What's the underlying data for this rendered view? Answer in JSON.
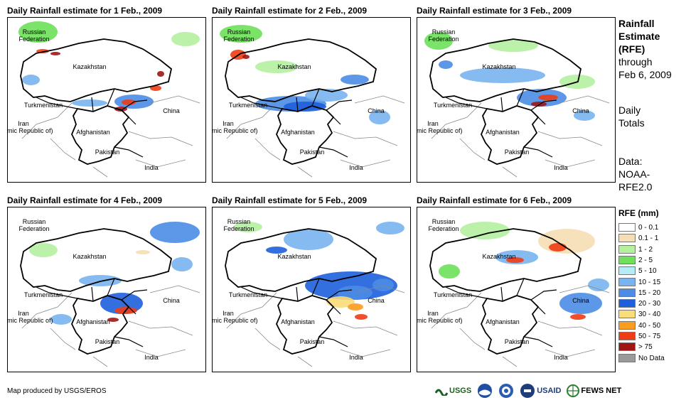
{
  "panels": [
    {
      "title": "Daily Rainfall estimate for 1 Feb., 2009"
    },
    {
      "title": "Daily Rainfall estimate for 2 Feb., 2009"
    },
    {
      "title": "Daily Rainfall estimate for 3 Feb., 2009"
    },
    {
      "title": "Daily Rainfall estimate for 4 Feb., 2009"
    },
    {
      "title": "Daily Rainfall estimate for 5 Feb., 2009"
    },
    {
      "title": "Daily Rainfall estimate for 6 Feb., 2009"
    }
  ],
  "labels": {
    "russia_1": "Russian",
    "russia_2": "Federation",
    "kazakhstan": "Kazakhstan",
    "turkmenistan": "Turkmenistan",
    "iran_1": "Iran",
    "iran_2": "(Islamic Republic of)",
    "afghanistan": "Afghanistan",
    "pakistan": "Pakistan",
    "china": "China",
    "india": "India"
  },
  "side": {
    "t1": "Rainfall",
    "t2": "Estimate",
    "t3": "(RFE)",
    "t4": "through",
    "t5": "Feb 6, 2009",
    "t6": "Daily",
    "t7": "Totals",
    "t8": "Data:",
    "t9": "NOAA-",
    "t10": "RFE2.0"
  },
  "legend": {
    "title": "RFE (mm)",
    "items": [
      {
        "label": "0 - 0.1",
        "color": "#ffffff"
      },
      {
        "label": "0.1 - 1",
        "color": "#f5deb3"
      },
      {
        "label": "1 - 2",
        "color": "#b4f0a0"
      },
      {
        "label": "2 - 5",
        "color": "#6ee05a"
      },
      {
        "label": "5 - 10",
        "color": "#b4ecf8"
      },
      {
        "label": "10 - 15",
        "color": "#78b4f0"
      },
      {
        "label": "15 - 20",
        "color": "#4a8ce6"
      },
      {
        "label": "20 - 30",
        "color": "#1e5fdc"
      },
      {
        "label": "30 - 40",
        "color": "#fadc78"
      },
      {
        "label": "40 - 50",
        "color": "#fa9c1e"
      },
      {
        "label": "50 - 75",
        "color": "#f03c14"
      },
      {
        "label": "> 75",
        "color": "#a01414"
      },
      {
        "label": "No Data",
        "color": "#9a9a9a"
      }
    ]
  },
  "credit": "Map produced by USGS/EROS",
  "logos": {
    "usgs": "USGS",
    "usaid": "USAID",
    "fews": "FEWS NET"
  }
}
